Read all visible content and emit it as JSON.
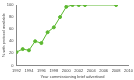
{
  "chart_data": {
    "type": "line",
    "x_label": "Year commissioning brief advertised",
    "y_label": "% with protocol available",
    "x": [
      1992,
      1993,
      1994,
      1995,
      1996,
      1997,
      1998,
      1999,
      2000,
      2001,
      2002,
      2003,
      2008
    ],
    "values": [
      22,
      27,
      25,
      40,
      37,
      55,
      63,
      80,
      97,
      100,
      100,
      100,
      100
    ],
    "color": "#5cb830",
    "marker": "circle",
    "xlim": [
      1992,
      2010
    ],
    "xticks": [
      1992,
      1994,
      1996,
      1998,
      2000,
      2002,
      2004,
      2006,
      2008,
      2010
    ],
    "ylim": [
      0,
      100
    ],
    "yticks": [
      0,
      20,
      40,
      60,
      80,
      100
    ],
    "grid": false
  }
}
